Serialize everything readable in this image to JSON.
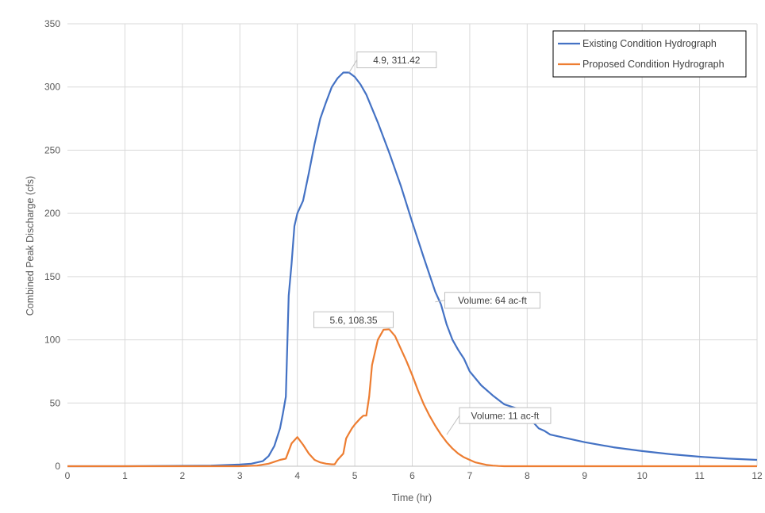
{
  "chart_data": {
    "type": "line",
    "xlabel": "Time (hr)",
    "ylabel": "Combined Peak Discharge (cfs)",
    "xlim": [
      0,
      12
    ],
    "ylim": [
      0,
      350
    ],
    "x_ticks": [
      "0",
      "1",
      "2",
      "3",
      "4",
      "5",
      "6",
      "7",
      "8",
      "9",
      "10",
      "11",
      "12"
    ],
    "y_ticks": [
      "0",
      "50",
      "100",
      "150",
      "200",
      "250",
      "300",
      "350"
    ],
    "grid": true,
    "legend_position": "top-right",
    "series": [
      {
        "name": "Existing Condition Hydrograph",
        "color": "#4472c4",
        "x": [
          0,
          1,
          2,
          2.5,
          3,
          3.2,
          3.4,
          3.5,
          3.6,
          3.7,
          3.75,
          3.8,
          3.85,
          3.9,
          3.95,
          4.0,
          4.1,
          4.2,
          4.3,
          4.4,
          4.5,
          4.6,
          4.7,
          4.8,
          4.9,
          5.0,
          5.1,
          5.2,
          5.4,
          5.6,
          5.8,
          6.0,
          6.2,
          6.4,
          6.5,
          6.6,
          6.7,
          6.8,
          6.9,
          7.0,
          7.2,
          7.4,
          7.6,
          7.8,
          7.9,
          8.0,
          8.1,
          8.2,
          8.3,
          8.4,
          8.6,
          9.0,
          9.5,
          10.0,
          10.5,
          11.0,
          11.5,
          12.0
        ],
        "y": [
          0,
          0,
          0.3,
          0.5,
          1.3,
          2,
          4,
          8,
          16,
          30,
          42,
          55,
          135,
          160,
          190,
          200,
          210,
          232,
          255,
          275,
          288,
          300,
          307,
          311.42,
          311.42,
          308,
          302,
          294,
          272,
          248,
          222,
          193,
          165,
          138,
          128,
          112,
          100,
          92,
          85,
          75,
          64,
          56,
          49,
          46,
          45,
          40,
          35,
          30,
          28,
          25,
          23,
          19,
          15,
          12,
          9.5,
          7.5,
          6,
          5
        ]
      },
      {
        "name": "Proposed Condition Hydrograph",
        "color": "#ed7d31",
        "x": [
          0,
          3.0,
          3.3,
          3.5,
          3.6,
          3.7,
          3.8,
          3.9,
          4.0,
          4.1,
          4.2,
          4.3,
          4.4,
          4.5,
          4.6,
          4.65,
          4.7,
          4.8,
          4.85,
          4.9,
          4.95,
          5.0,
          5.1,
          5.15,
          5.2,
          5.25,
          5.3,
          5.4,
          5.5,
          5.6,
          5.7,
          5.8,
          5.9,
          6.0,
          6.1,
          6.2,
          6.3,
          6.4,
          6.5,
          6.6,
          6.7,
          6.8,
          6.9,
          7.0,
          7.1,
          7.2,
          7.3,
          7.4,
          7.5,
          7.6,
          7.8,
          8.0,
          12.0
        ],
        "y": [
          0,
          0,
          0.5,
          2,
          3.5,
          5,
          6,
          18,
          23,
          17,
          10,
          5,
          3,
          2,
          1.5,
          1.5,
          5,
          10,
          22,
          26,
          30,
          33,
          38,
          40,
          40,
          55,
          80,
          100,
          108,
          108.35,
          103,
          93,
          83,
          72,
          60,
          49,
          40,
          32,
          25,
          19,
          14,
          10,
          7,
          5,
          3,
          2,
          1,
          0.5,
          0.2,
          0,
          0,
          0,
          0
        ]
      }
    ],
    "annotations": [
      {
        "text": "4.9, 311.42",
        "x": 4.9,
        "y": 311.42
      },
      {
        "text": "Volume: 64 ac-ft",
        "x": 6.4,
        "y": 130
      },
      {
        "text": "5.6, 108.35",
        "x": 5.6,
        "y": 108.35
      },
      {
        "text": "Volume: 11 ac-ft",
        "x": 6.6,
        "y": 25
      }
    ],
    "styles": {
      "grid_color": "#d9d9d9",
      "axis_color": "#bfbfbf",
      "text_color": "#595959",
      "label_box_border": "#bfbfbf"
    }
  }
}
